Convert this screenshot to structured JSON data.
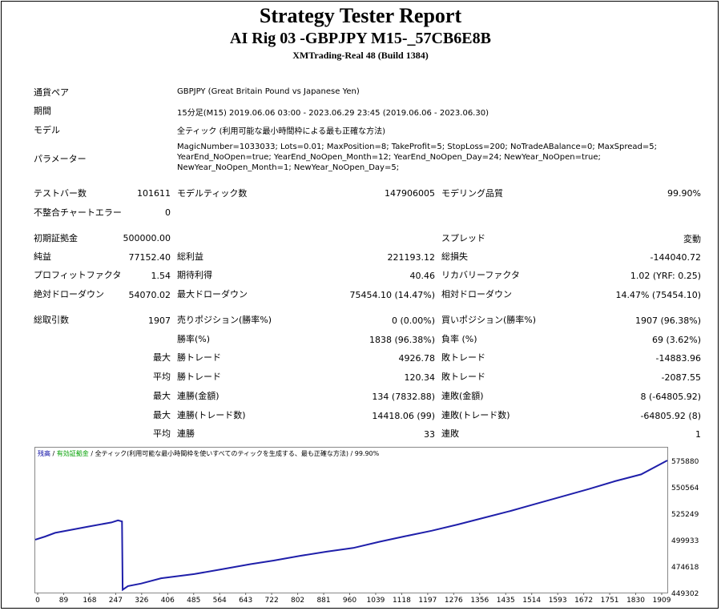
{
  "header": {
    "title": "Strategy Tester Report",
    "subtitle": "AI Rig 03 -GBPJPY M15-_57CB6E8B",
    "server": "XMTrading-Real 48 (Build 1384)"
  },
  "info": {
    "pair_label": "通貨ペア",
    "pair_value": "GBPJPY (Great Britain Pound vs Japanese Yen)",
    "period_label": "期間",
    "period_value": "15分足(M15) 2019.06.06 03:00 - 2023.06.29 23:45 (2019.06.06 - 2023.06.30)",
    "model_label": "モデル",
    "model_value": "全ティック (利用可能な最小時間枠による最も正確な方法)",
    "params_label": "パラメーター",
    "params_value": "MagicNumber=1033033; Lots=0.01; MaxPosition=8; TakeProfit=5; StopLoss=200; NoTradeABalance=0; MaxSpread=5; YearEnd_NoOpen=true; YearEnd_NoOpen_Month=12; YearEnd_NoOpen_Day=24; NewYear_NoOpen=true; NewYear_NoOpen_Month=1; NewYear_NoOpen_Day=5;"
  },
  "stats": {
    "bars_label": "テストバー数",
    "bars_value": "101611",
    "ticks_label": "モデルティック数",
    "ticks_value": "147906005",
    "quality_label": "モデリング品質",
    "quality_value": "99.90%",
    "mismatch_label": "不整合チャートエラー",
    "mismatch_value": "0",
    "deposit_label": "初期証拠金",
    "deposit_value": "500000.00",
    "spread_label": "スプレッド",
    "spread_value": "変動",
    "net_label": "純益",
    "net_value": "77152.40",
    "gross_profit_label": "総利益",
    "gross_profit_value": "221193.12",
    "gross_loss_label": "総損失",
    "gross_loss_value": "-144040.72",
    "pf_label": "プロフィットファクタ",
    "pf_value": "1.54",
    "expected_label": "期待利得",
    "expected_value": "40.46",
    "recovery_label": "リカバリーファクタ",
    "recovery_value": "1.02 (YRF: 0.25)",
    "abs_dd_label": "絶対ドローダウン",
    "abs_dd_value": "54070.02",
    "max_dd_label": "最大ドローダウン",
    "max_dd_value": "75454.10 (14.47%)",
    "rel_dd_label": "相対ドローダウン",
    "rel_dd_value": "14.47% (75454.10)",
    "trades_label": "総取引数",
    "trades_value": "1907",
    "short_label": "売りポジション(勝率%)",
    "short_value": "0 (0.00%)",
    "long_label": "買いポジション(勝率%)",
    "long_value": "1907 (96.38%)",
    "win_label": "勝率(%)",
    "win_value": "1838 (96.38%)",
    "loss_label": "負率 (%)",
    "loss_value": "69 (3.62%)",
    "max_prefix": "最大",
    "avg_prefix": "平均",
    "max_win_label": "勝トレード",
    "max_win_value": "4926.78",
    "max_loss_label": "敗トレード",
    "max_loss_value": "-14883.96",
    "avg_win_label": "勝トレード",
    "avg_win_value": "120.34",
    "avg_loss_label": "敗トレード",
    "avg_loss_value": "-2087.55",
    "cons_win_amt_label": "連勝(金額)",
    "cons_win_amt_value": "134 (7832.88)",
    "cons_loss_amt_label": "連敗(金額)",
    "cons_loss_amt_value": "8 (-64805.92)",
    "cons_win_cnt_label": "連勝(トレード数)",
    "cons_win_cnt_value": "14418.06 (99)",
    "cons_loss_cnt_label": "連敗(トレード数)",
    "cons_loss_cnt_value": "-64805.92 (8)",
    "avg_cons_win_label": "連勝",
    "avg_cons_win_value": "33",
    "avg_cons_loss_label": "連敗",
    "avg_cons_loss_value": "1"
  },
  "chart_legend": {
    "balance": "残高",
    "sep1": " / ",
    "equity": "有効証拠金",
    "sep2": " / ",
    "rest": "全ティック(利用可能な最小時間枠を使いすべてのティックを生成する、最も正確な方法) / 99.90%",
    "balance_color": "#0000a0",
    "equity_color": "#00a000"
  },
  "chart_data": {
    "type": "line",
    "x_ticks": [
      "0",
      "89",
      "168",
      "247",
      "326",
      "406",
      "485",
      "564",
      "643",
      "722",
      "802",
      "881",
      "960",
      "1039",
      "1118",
      "1197",
      "1276",
      "1356",
      "1435",
      "1514",
      "1593",
      "1672",
      "1751",
      "1830",
      "1909"
    ],
    "y_ticks": [
      "575880",
      "550564",
      "525249",
      "499933",
      "474618",
      "449302"
    ],
    "xlim": [
      0,
      1909
    ],
    "ylim": [
      449302,
      575880
    ],
    "series": [
      {
        "name": "残高",
        "color": "#1f1faa",
        "points": [
          [
            0,
            500000
          ],
          [
            30,
            503000
          ],
          [
            60,
            506500
          ],
          [
            110,
            509500
          ],
          [
            160,
            512500
          ],
          [
            230,
            516500
          ],
          [
            250,
            518500
          ],
          [
            262,
            517500
          ],
          [
            264,
            452000
          ],
          [
            280,
            455500
          ],
          [
            320,
            458000
          ],
          [
            380,
            463000
          ],
          [
            480,
            467000
          ],
          [
            560,
            471500
          ],
          [
            650,
            476500
          ],
          [
            720,
            480000
          ],
          [
            800,
            484500
          ],
          [
            880,
            488500
          ],
          [
            960,
            492000
          ],
          [
            1040,
            498000
          ],
          [
            1120,
            503500
          ],
          [
            1197,
            508500
          ],
          [
            1276,
            514500
          ],
          [
            1356,
            521000
          ],
          [
            1435,
            527500
          ],
          [
            1514,
            534500
          ],
          [
            1593,
            541500
          ],
          [
            1672,
            548500
          ],
          [
            1751,
            556000
          ],
          [
            1830,
            562500
          ],
          [
            1909,
            575880
          ]
        ]
      }
    ]
  }
}
